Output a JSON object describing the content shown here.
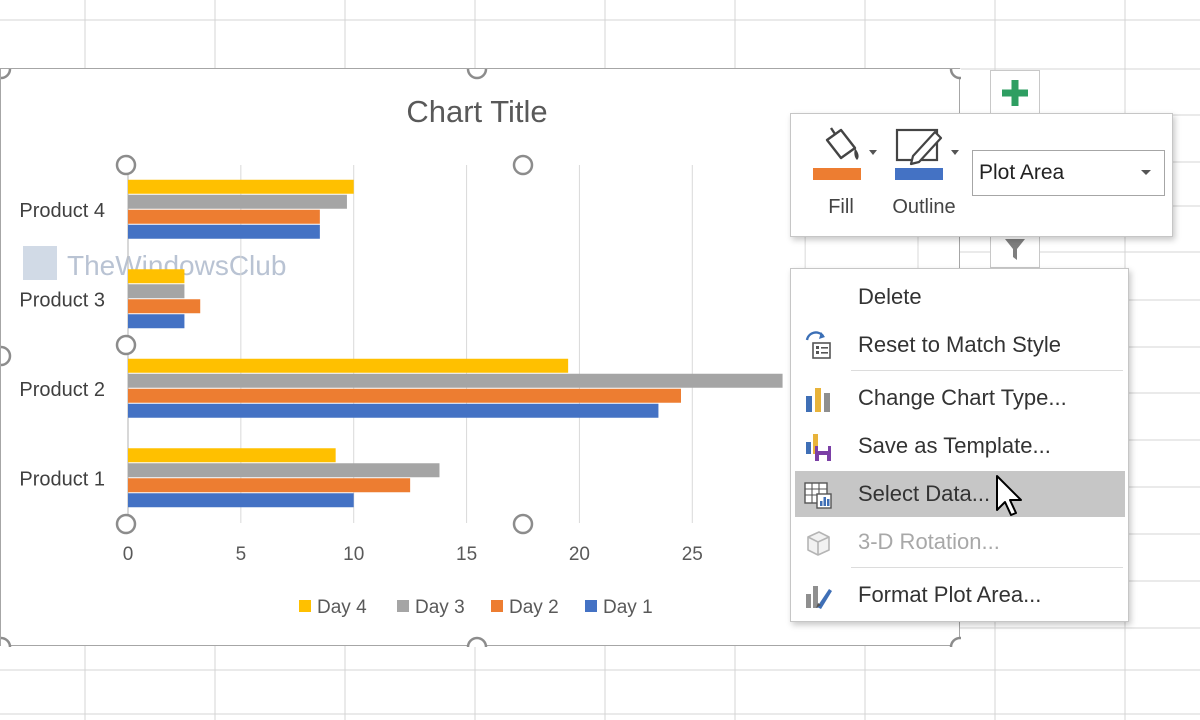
{
  "chart": {
    "title": "Chart Title",
    "watermark": "TheWindowsClub"
  },
  "chart_data": {
    "type": "bar",
    "orientation": "horizontal",
    "categories": [
      "Product 1",
      "Product 2",
      "Product 3",
      "Product 4"
    ],
    "series": [
      {
        "name": "Day 1",
        "color": "#4472C4",
        "values": [
          10,
          23.5,
          2.5,
          8.5
        ]
      },
      {
        "name": "Day 2",
        "color": "#ED7D31",
        "values": [
          12.5,
          24.5,
          3.2,
          8.5
        ]
      },
      {
        "name": "Day 3",
        "color": "#A5A5A5",
        "values": [
          13.8,
          29,
          2.5,
          9.7
        ]
      },
      {
        "name": "Day 4",
        "color": "#FFC000",
        "values": [
          9.2,
          19.5,
          2.5,
          10
        ]
      }
    ],
    "xticks": [
      0,
      5,
      10,
      15,
      20,
      25
    ],
    "xlim": [
      0,
      35
    ],
    "grid": true,
    "legend_position": "bottom",
    "legend_order": [
      "Day 4",
      "Day 3",
      "Day 2",
      "Day 1"
    ]
  },
  "side_buttons": {
    "elements_icon": "plus-icon",
    "filter_icon": "funnel-icon"
  },
  "mini_toolbar": {
    "fill_label": "Fill",
    "outline_label": "Outline",
    "fill_color": "#ED7D31",
    "outline_color": "#4472C4",
    "element_selected": "Plot Area"
  },
  "context_menu": {
    "items": [
      {
        "label": "Delete",
        "icon": "none"
      },
      {
        "label": "Reset to Match Style",
        "icon": "reset-style-icon"
      },
      {
        "label": "Change Chart Type...",
        "icon": "bar-chart-icon"
      },
      {
        "label": "Save as Template...",
        "icon": "save-template-icon"
      },
      {
        "label": "Select Data...",
        "icon": "select-data-icon",
        "state": "highlighted"
      },
      {
        "label": "3-D Rotation...",
        "icon": "cube-icon",
        "state": "disabled"
      },
      {
        "label": "Format Plot Area...",
        "icon": "format-brush-icon"
      }
    ]
  }
}
